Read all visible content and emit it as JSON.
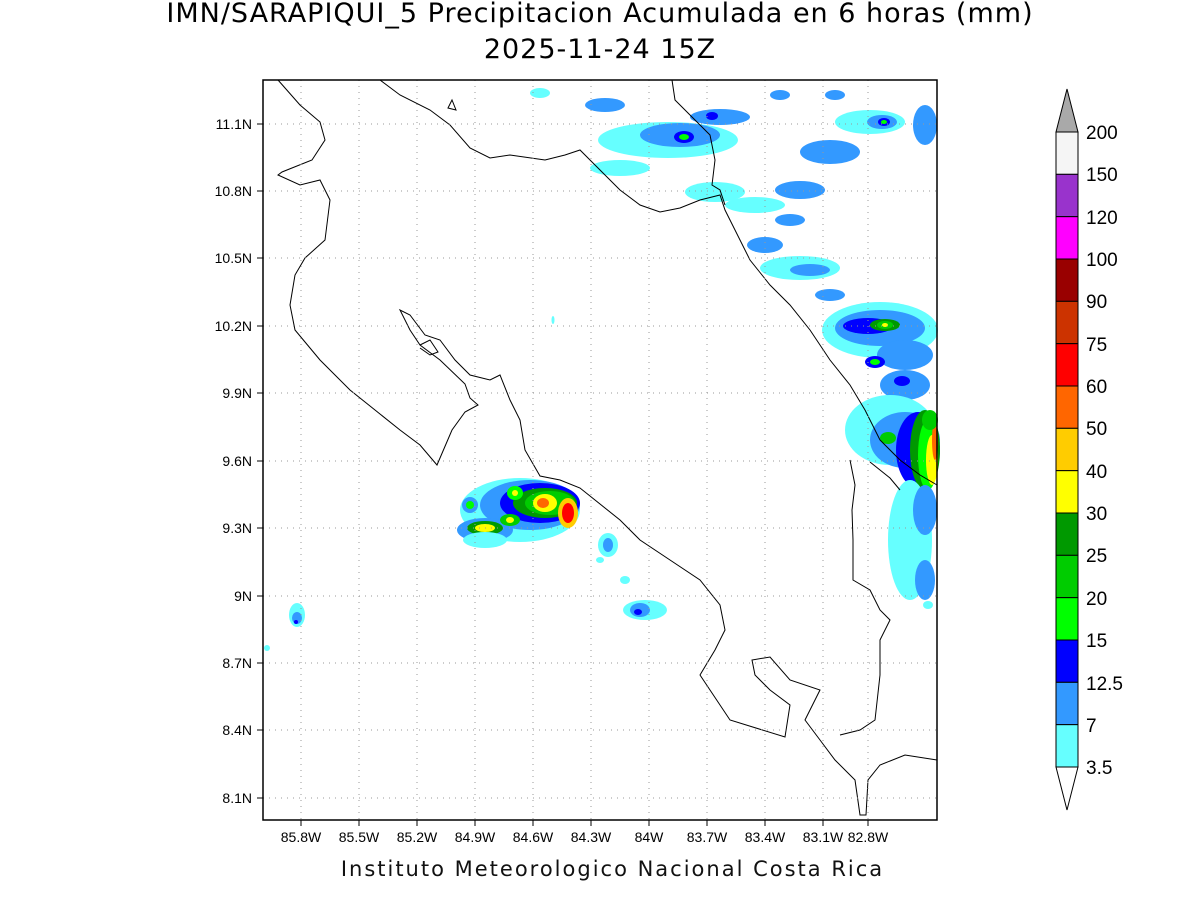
{
  "title_line1": "IMN/SARAPIQUI_5 Precipitacion Acumulada en 6 horas (mm)",
  "title_line2": "2025-11-24 15Z",
  "footer": "Instituto Meteorologico Nacional Costa Rica",
  "map": {
    "lat_labels": [
      "11.1N",
      "10.8N",
      "10.5N",
      "10.2N",
      "9.9N",
      "9.6N",
      "9.3N",
      "9N",
      "8.7N",
      "8.4N",
      "8.1N"
    ],
    "lon_labels": [
      "85.8W",
      "85.5W",
      "85.2W",
      "84.9W",
      "84.6W",
      "84.3W",
      "84W",
      "83.7W",
      "83.4W",
      "83.1W",
      "82.8W"
    ],
    "grid": "dotted"
  },
  "colorbar": {
    "levels": [
      "200",
      "150",
      "120",
      "100",
      "90",
      "75",
      "60",
      "50",
      "40",
      "30",
      "25",
      "20",
      "15",
      "12.5",
      "7",
      "3.5"
    ],
    "colors": [
      "#f5f5f5",
      "#9933cc",
      "#ff00ff",
      "#990000",
      "#cc3300",
      "#ff0000",
      "#ff6600",
      "#ffcc00",
      "#ffff00",
      "#009900",
      "#00cc00",
      "#00ff00",
      "#0000ff",
      "#3399ff",
      "#66ffff"
    ],
    "over_color": "#a9a9a9",
    "under_color": "#ffffff"
  }
}
